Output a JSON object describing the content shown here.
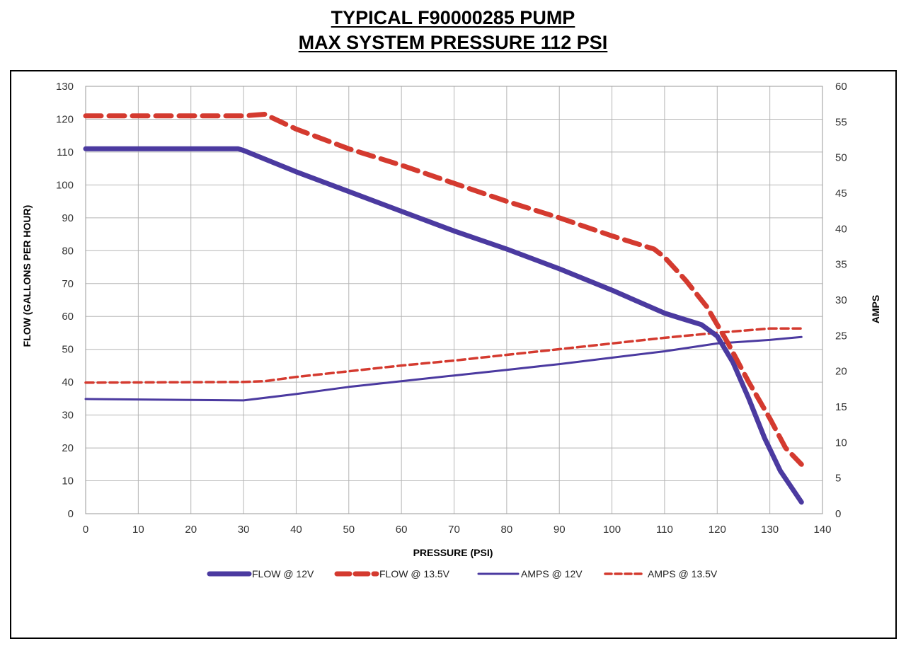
{
  "chart_data": {
    "type": "line",
    "title": "TYPICAL F90000285 PUMP",
    "subtitle": "MAX SYSTEM PRESSURE 112 PSI",
    "xlabel": "PRESSURE (PSI)",
    "ylabel": "FLOW (GALLONS PER HOUR)",
    "y2label": "AMPS",
    "xlim": [
      0,
      140
    ],
    "ylim": [
      0,
      130
    ],
    "y2lim": [
      0,
      60
    ],
    "xticks": [
      "0",
      "10",
      "20",
      "30",
      "40",
      "50",
      "60",
      "70",
      "80",
      "90",
      "100",
      "110",
      "120",
      "130",
      "140"
    ],
    "yticks": [
      "0",
      "10",
      "20",
      "30",
      "40",
      "50",
      "60",
      "70",
      "80",
      "90",
      "100",
      "110",
      "120",
      "130"
    ],
    "y2ticks": [
      "0",
      "5",
      "10",
      "15",
      "20",
      "25",
      "30",
      "35",
      "40",
      "45",
      "50",
      "55",
      "60"
    ],
    "grid": true,
    "legend_position": "bottom",
    "series": [
      {
        "name": "FLOW @ 12V",
        "axis": "left",
        "color": "#4b3aa0",
        "style": "solid-thick",
        "x": [
          0,
          29,
          30,
          40,
          50,
          60,
          70,
          80,
          90,
          100,
          110,
          113,
          117,
          120,
          123,
          126,
          129,
          132,
          136
        ],
        "y": [
          111,
          111,
          110.5,
          104,
          98,
          92,
          86,
          80.5,
          74.5,
          68,
          61,
          59.5,
          57.5,
          54,
          46,
          35,
          23,
          13,
          3.5
        ]
      },
      {
        "name": "FLOW @ 13.5V",
        "axis": "left",
        "color": "#d43a2f",
        "style": "dashed-thick",
        "x": [
          0,
          30,
          34,
          40,
          50,
          60,
          70,
          80,
          90,
          100,
          108,
          110,
          114,
          118,
          122,
          126,
          130,
          133,
          136
        ],
        "y": [
          121,
          121,
          121.5,
          117,
          111,
          106,
          100.5,
          95,
          90,
          84.5,
          80.5,
          78,
          71,
          63,
          52,
          40,
          29,
          20,
          15
        ]
      },
      {
        "name": "AMPS @ 12V",
        "axis": "right",
        "color": "#4b3aa0",
        "style": "solid-thin",
        "x": [
          0,
          30,
          40,
          50,
          60,
          70,
          80,
          90,
          100,
          110,
          120,
          130,
          136
        ],
        "y": [
          16.1,
          15.9,
          16.8,
          17.8,
          18.6,
          19.4,
          20.2,
          21.0,
          21.9,
          22.8,
          23.9,
          24.4,
          24.8
        ]
      },
      {
        "name": "AMPS @ 13.5V",
        "axis": "right",
        "color": "#d43a2f",
        "style": "dashed-thin",
        "x": [
          0,
          30,
          34,
          40,
          50,
          60,
          70,
          80,
          90,
          100,
          110,
          120,
          130,
          136
        ],
        "y": [
          18.4,
          18.5,
          18.6,
          19.2,
          20.0,
          20.8,
          21.5,
          22.3,
          23.1,
          23.9,
          24.7,
          25.4,
          26.0,
          26.0
        ]
      }
    ]
  }
}
